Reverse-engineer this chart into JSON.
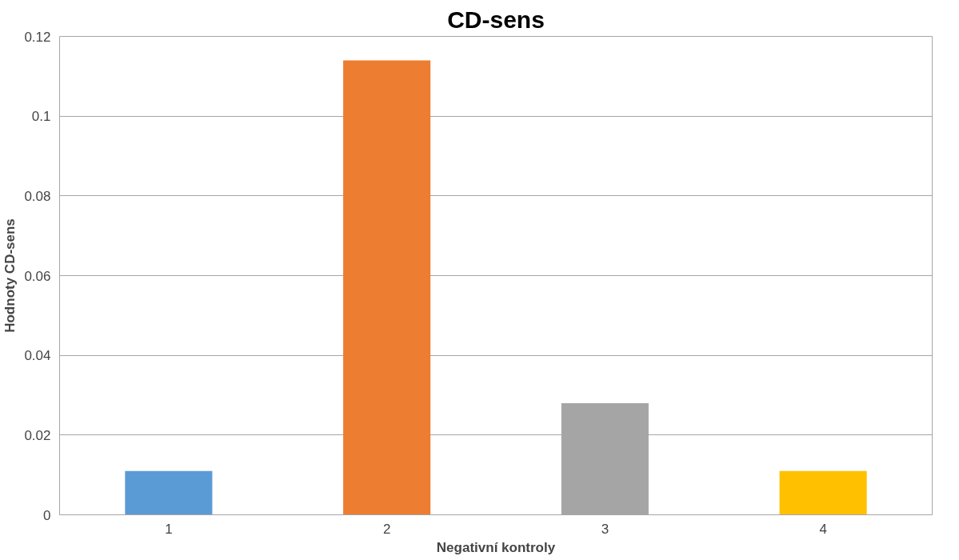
{
  "chart_data": {
    "type": "bar",
    "title": "CD-sens",
    "xlabel": "Negativní kontroly",
    "ylabel": "Hodnoty CD-sens",
    "categories": [
      "1",
      "2",
      "3",
      "4"
    ],
    "values": [
      0.011,
      0.114,
      0.028,
      0.011
    ],
    "colors": [
      "#5b9bd5",
      "#ed7d31",
      "#a5a5a5",
      "#ffc000"
    ],
    "ylim": [
      0,
      0.12
    ],
    "yticks": [
      0,
      0.02,
      0.04,
      0.06,
      0.08,
      0.1,
      0.12
    ],
    "grid": "y"
  }
}
